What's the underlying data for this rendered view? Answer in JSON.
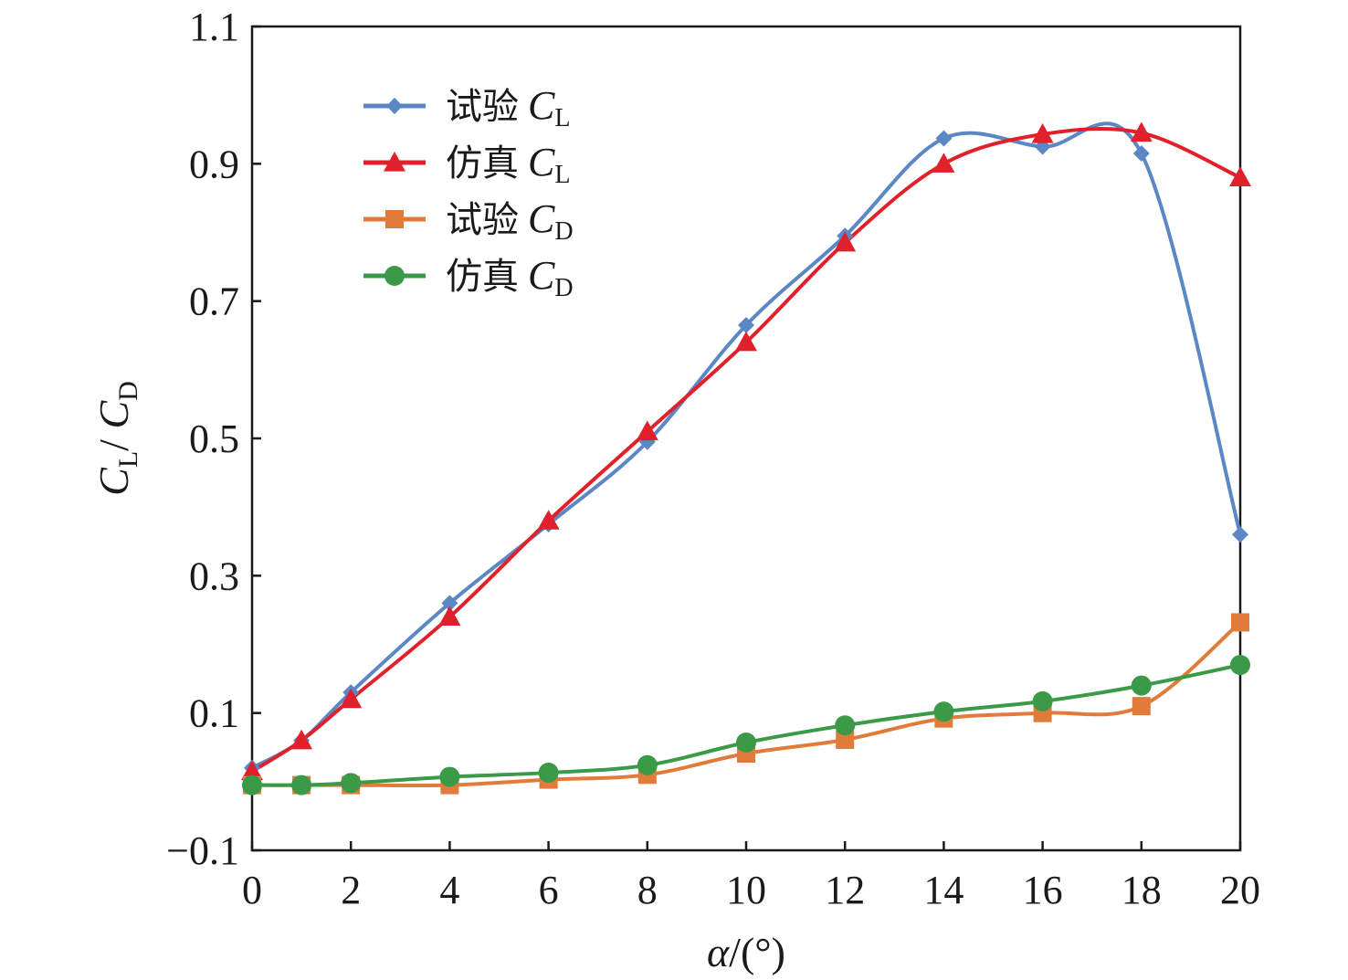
{
  "chart_data": {
    "type": "line",
    "xlabel": {
      "symbol": "α",
      "unit": "/(°)"
    },
    "ylabel": {
      "part1": "C",
      "sub1": "L",
      "sep": "/ ",
      "part2": "C",
      "sub2": "D"
    },
    "xlim": [
      0,
      20
    ],
    "ylim": [
      -0.1,
      1.1
    ],
    "xticks": [
      0,
      2,
      4,
      6,
      8,
      10,
      12,
      14,
      16,
      18,
      20
    ],
    "xtick_labels": [
      "0",
      "2",
      "4",
      "6",
      "8",
      "10",
      "12",
      "14",
      "16",
      "18",
      "20"
    ],
    "yticks": [
      -0.1,
      0.1,
      0.3,
      0.5,
      0.7,
      0.9,
      1.1
    ],
    "ytick_labels": [
      "−0.1",
      "0.1",
      "0.3",
      "0.5",
      "0.7",
      "0.9",
      "1.1"
    ],
    "grid": false,
    "legend_position": "top-left",
    "series": [
      {
        "name": "试验 C_L",
        "label_cn": "试验",
        "label_sym": "C",
        "label_sub": "L",
        "color": "#5b87c5",
        "marker": "diamond",
        "x": [
          0,
          1,
          2,
          4,
          6,
          8,
          10,
          12,
          14,
          16,
          18,
          20
        ],
        "y": [
          0.02,
          0.06,
          0.13,
          0.26,
          0.375,
          0.495,
          0.665,
          0.795,
          0.937,
          0.925,
          0.915,
          0.36
        ]
      },
      {
        "name": "仿真 C_L",
        "label_cn": "仿真",
        "label_sym": "C",
        "label_sub": "L",
        "color": "#e0212b",
        "marker": "triangle",
        "x": [
          0,
          1,
          2,
          4,
          6,
          8,
          10,
          12,
          14,
          16,
          18,
          20
        ],
        "y": [
          0.015,
          0.06,
          0.12,
          0.24,
          0.38,
          0.51,
          0.64,
          0.785,
          0.9,
          0.943,
          0.945,
          0.88
        ]
      },
      {
        "name": "试验 C_D",
        "label_cn": "试验",
        "label_sym": "C",
        "label_sub": "D",
        "color": "#e07b39",
        "marker": "square",
        "x": [
          0,
          1,
          2,
          4,
          6,
          8,
          10,
          12,
          14,
          16,
          18,
          20
        ],
        "y": [
          -0.005,
          -0.005,
          -0.005,
          -0.005,
          0.003,
          0.01,
          0.041,
          0.061,
          0.092,
          0.1,
          0.11,
          0.232
        ]
      },
      {
        "name": "仿真 C_D",
        "label_cn": "仿真",
        "label_sym": "C",
        "label_sub": "D",
        "color": "#3a9a47",
        "marker": "circle",
        "x": [
          0,
          1,
          2,
          4,
          6,
          8,
          10,
          12,
          14,
          16,
          18,
          20
        ],
        "y": [
          -0.005,
          -0.005,
          -0.002,
          0.007,
          0.013,
          0.024,
          0.057,
          0.082,
          0.102,
          0.117,
          0.14,
          0.17
        ]
      }
    ]
  }
}
